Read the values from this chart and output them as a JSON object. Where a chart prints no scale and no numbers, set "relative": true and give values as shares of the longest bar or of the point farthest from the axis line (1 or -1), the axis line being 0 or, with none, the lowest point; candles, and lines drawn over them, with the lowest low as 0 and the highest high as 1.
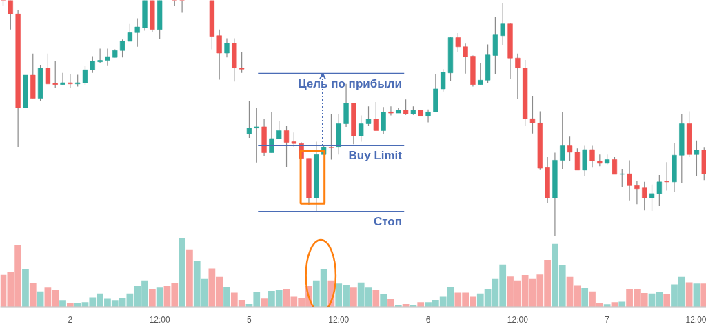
{
  "chart_data": [
    {
      "type": "candlestick",
      "relative": true,
      "tick_labels": false,
      "categories": [
        null,
        null,
        null,
        null,
        null,
        null,
        null,
        null,
        null,
        null,
        null,
        null,
        null,
        null,
        null,
        null,
        null,
        null,
        null,
        null,
        null,
        null,
        null,
        null,
        null,
        null,
        null,
        null,
        null,
        null,
        null,
        null,
        null,
        null,
        null,
        null,
        null,
        null,
        null,
        null,
        null,
        null,
        null,
        null,
        null,
        null,
        null,
        null,
        null,
        null,
        null,
        null,
        null,
        null,
        null,
        null,
        null,
        null,
        null,
        null,
        null,
        null,
        null,
        null,
        null,
        null,
        null,
        null,
        null,
        null,
        null,
        null,
        null,
        null,
        null,
        null,
        null,
        null,
        null,
        null,
        null,
        null,
        null,
        null,
        null,
        null,
        null,
        null,
        null,
        null,
        null,
        null,
        null,
        null,
        null
      ],
      "ohlc": [
        [
          1,
          1,
          0.976,
          1
        ],
        [
          1,
          1,
          0.876,
          0.942
        ],
        [
          0.942,
          0.958,
          0.376,
          0.545
        ],
        [
          0.545,
          0.682,
          0.545,
          0.682
        ],
        [
          0.682,
          0.774,
          0.584,
          0.584
        ],
        [
          0.584,
          0.726,
          0.574,
          0.713
        ],
        [
          0.713,
          0.774,
          0.645,
          0.645
        ],
        [
          0.647,
          0.742,
          0.629,
          0.642
        ],
        [
          0.642,
          0.692,
          0.639,
          0.65
        ],
        [
          0.65,
          0.687,
          0.629,
          0.645
        ],
        [
          0.645,
          0.684,
          0.634,
          0.65
        ],
        [
          0.65,
          0.721,
          0.639,
          0.705
        ],
        [
          0.705,
          0.763,
          0.692,
          0.742
        ],
        [
          0.739,
          0.795,
          0.732,
          0.745
        ],
        [
          0.745,
          0.795,
          0.721,
          0.761
        ],
        [
          0.758,
          0.792,
          0.758,
          0.787
        ],
        [
          0.787,
          0.834,
          0.758,
          0.826
        ],
        [
          0.826,
          0.9,
          0.826,
          0.863
        ],
        [
          0.863,
          0.924,
          0.803,
          0.887
        ],
        [
          0.884,
          1,
          0.871,
          1
        ],
        [
          1,
          1,
          0.866,
          0.876
        ],
        [
          0.876,
          1,
          0.837,
          1
        ],
        null,
        [
          1,
          1,
          0.976,
          1
        ],
        [
          1,
          1,
          0.947,
          1
        ],
        null,
        null,
        null,
        [
          1,
          1,
          0.792,
          0.847
        ],
        [
          0.85,
          0.876,
          0.663,
          0.776
        ],
        [
          0.776,
          0.839,
          0.758,
          0.818
        ],
        [
          0.818,
          0.839,
          0.655,
          0.713
        ],
        [
          0.713,
          0.779,
          0.692,
          0.708
        ],
        [
          0.432,
          0.571,
          0.416,
          0.458
        ],
        [
          0.458,
          0.545,
          0.311,
          0.463
        ],
        [
          0.463,
          0.497,
          0.337,
          0.353
        ],
        [
          0.353,
          0.524,
          0.353,
          0.413
        ],
        [
          0.413,
          0.487,
          0.413,
          0.447
        ],
        [
          0.447,
          0.466,
          0.292,
          0.397
        ],
        [
          0.4,
          0.439,
          0.376,
          0.392
        ],
        [
          0.392,
          0.397,
          0.329,
          0.329
        ],
        [
          0.329,
          0.329,
          0.129,
          0.161
        ],
        [
          0.161,
          0.4,
          0.105,
          0.345
        ],
        [
          0.345,
          0.387,
          0.345,
          0.376
        ],
        [
          0.376,
          0.518,
          0.324,
          0.374
        ],
        [
          0.376,
          0.516,
          0.345,
          0.476
        ],
        [
          0.476,
          0.645,
          0.463,
          0.563
        ],
        [
          0.563,
          0.563,
          0.389,
          0.424
        ],
        [
          0.424,
          0.511,
          0.4,
          0.476
        ],
        [
          0.476,
          0.55,
          0.466,
          0.495
        ],
        [
          0.495,
          0.568,
          0.447,
          0.447
        ],
        [
          0.447,
          0.547,
          0.432,
          0.524
        ],
        [
          0.526,
          0.55,
          0.511,
          0.521
        ],
        [
          0.521,
          0.545,
          0.521,
          0.534
        ],
        [
          0.534,
          0.579,
          0.513,
          0.518
        ],
        [
          0.518,
          0.55,
          0.513,
          0.534
        ],
        [
          0.534,
          0.534,
          0.508,
          0.508
        ],
        [
          0.508,
          0.537,
          0.482,
          0.526
        ],
        [
          0.526,
          0.687,
          0.526,
          0.624
        ],
        [
          0.624,
          0.708,
          0.613,
          0.695
        ],
        [
          0.692,
          0.845,
          0.658,
          0.842
        ],
        [
          0.842,
          0.861,
          0.782,
          0.803
        ],
        [
          0.803,
          0.816,
          0.689,
          0.761
        ],
        [
          0.763,
          0.766,
          0.634,
          0.642
        ],
        [
          0.642,
          0.734,
          0.642,
          0.661
        ],
        [
          0.661,
          0.813,
          0.65,
          0.768
        ],
        [
          0.766,
          0.929,
          0.687,
          0.853
        ],
        [
          0.85,
          0.989,
          0.808,
          0.9
        ],
        [
          0.9,
          0.905,
          0.668,
          0.755
        ],
        [
          0.755,
          0.774,
          0.582,
          0.713
        ],
        [
          0.713,
          0.747,
          0.466,
          0.497
        ],
        [
          0.497,
          0.592,
          0.434,
          0.479
        ],
        [
          0.479,
          0.529,
          0.282,
          0.287
        ],
        [
          0.289,
          0.334,
          0.139,
          0.161
        ],
        [
          0.161,
          0.353,
          0,
          0.321
        ],
        [
          0.321,
          0.524,
          0.284,
          0.382
        ],
        [
          0.382,
          0.421,
          0.318,
          0.355
        ],
        [
          0.355,
          0.371,
          0.279,
          0.279
        ],
        [
          0.279,
          0.382,
          0.253,
          0.366
        ],
        [
          0.366,
          0.382,
          0.289,
          0.318
        ],
        [
          0.318,
          0.345,
          0.295,
          0.308
        ],
        [
          0.308,
          0.345,
          0.303,
          0.324
        ],
        [
          0.324,
          0.334,
          0.261,
          0.261
        ],
        [
          0.261,
          0.284,
          0.208,
          0.263
        ],
        [
          0.263,
          0.321,
          0.15,
          0.213
        ],
        [
          0.213,
          0.232,
          0.134,
          0.2
        ],
        [
          0.203,
          0.229,
          0.108,
          0.161
        ],
        [
          0.161,
          0.218,
          0.105,
          0.179
        ],
        [
          0.179,
          0.258,
          0.126,
          0.229
        ],
        [
          0.232,
          0.313,
          0.192,
          0.229
        ],
        [
          0.229,
          0.395,
          0.187,
          0.342
        ],
        [
          0.342,
          0.518,
          0.224,
          0.476
        ],
        [
          0.476,
          0.529,
          0.334,
          0.345
        ],
        [
          0.345,
          0.405,
          0.255,
          0.363
        ],
        [
          0.363,
          0.374,
          0.237,
          0.263
        ]
      ],
      "colors": [
        "#ef5350",
        "#ef5350",
        "#ef5350",
        "#26a69a",
        "#ef5350",
        "#26a69a",
        "#ef5350",
        "#ef5350",
        "#26a69a",
        "#ef5350",
        "#26a69a",
        "#26a69a",
        "#26a69a",
        "#26a69a",
        "#26a69a",
        "#26a69a",
        "#26a69a",
        "#26a69a",
        "#26a69a",
        "#26a69a",
        "#ef5350",
        "#26a69a",
        null,
        "#ef5350",
        "#ef5350",
        null,
        null,
        null,
        "#ef5350",
        "#ef5350",
        "#26a69a",
        "#ef5350",
        "#ef5350",
        "#26a69a",
        "#26a69a",
        "#ef5350",
        "#26a69a",
        "#26a69a",
        "#ef5350",
        "#ef5350",
        "#ef5350",
        "#ef5350",
        "#26a69a",
        "#26a69a",
        "#ef5350",
        "#26a69a",
        "#26a69a",
        "#ef5350",
        "#26a69a",
        "#26a69a",
        "#ef5350",
        "#26a69a",
        "#ef5350",
        "#26a69a",
        "#ef5350",
        "#26a69a",
        "#ef5350",
        "#26a69a",
        "#26a69a",
        "#26a69a",
        "#26a69a",
        "#ef5350",
        "#ef5350",
        "#ef5350",
        "#26a69a",
        "#26a69a",
        "#26a69a",
        "#26a69a",
        "#ef5350",
        "#ef5350",
        "#ef5350",
        "#ef5350",
        "#ef5350",
        "#ef5350",
        "#26a69a",
        "#26a69a",
        "#ef5350",
        "#ef5350",
        "#26a69a",
        "#ef5350",
        "#ef5350",
        "#26a69a",
        "#ef5350",
        "#26a69a",
        "#ef5350",
        "#ef5350",
        "#ef5350",
        "#26a69a",
        "#26a69a",
        "#ef5350",
        "#26a69a",
        "#26a69a",
        "#ef5350",
        "#26a69a",
        "#ef5350"
      ],
      "ref_lines": [
        {
          "axis": "y",
          "value": 0.689,
          "label": "Цель по прибыли",
          "color": "#4a6cb6"
        },
        {
          "axis": "y",
          "value": 0.384,
          "label": "Buy Limit",
          "color": "#4a6cb6"
        },
        {
          "axis": "y",
          "value": 0.103,
          "label": "Стоп",
          "color": "#4a6cb6"
        }
      ]
    },
    {
      "type": "bar",
      "relative": true,
      "tick_labels": "x",
      "categories": [
        null,
        null,
        null,
        null,
        null,
        null,
        null,
        null,
        null,
        "2",
        null,
        null,
        null,
        null,
        null,
        null,
        null,
        null,
        null,
        null,
        null,
        "12:00",
        null,
        null,
        null,
        null,
        null,
        null,
        null,
        null,
        null,
        null,
        null,
        "5",
        null,
        null,
        null,
        null,
        null,
        null,
        null,
        null,
        null,
        null,
        null,
        "12:00",
        null,
        null,
        null,
        null,
        null,
        null,
        null,
        null,
        null,
        null,
        null,
        "6",
        null,
        null,
        null,
        null,
        null,
        null,
        null,
        null,
        null,
        null,
        null,
        "12:00",
        null,
        null,
        null,
        null,
        null,
        null,
        null,
        null,
        null,
        null,
        null,
        "7",
        null,
        null,
        null,
        null,
        null,
        null,
        null,
        null,
        null,
        null,
        null,
        "12:00",
        null
      ],
      "values": [
        0.462,
        0.511,
        0.895,
        0.547,
        0.345,
        0.219,
        0.276,
        0.237,
        0.084,
        0.054,
        0.054,
        0.063,
        0.132,
        0.189,
        0.111,
        0.084,
        0.123,
        0.189,
        0.297,
        0.381,
        0.249,
        0.276,
        0.297,
        0.345,
        1,
        0.826,
        0.673,
        0.402,
        0.556,
        0.432,
        0.285,
        0.201,
        0.087,
        0.036,
        0.21,
        0.114,
        0.228,
        0.237,
        0.249,
        0.141,
        0.123,
        0.297,
        0.381,
        0.547,
        0.381,
        0.336,
        0.315,
        0.276,
        0.351,
        0.276,
        0.237,
        0.18,
        0.105,
        0.024,
        0.036,
        0.024,
        0.063,
        0.063,
        0.093,
        0.141,
        0.285,
        0.201,
        0.201,
        0.141,
        0.189,
        0.258,
        0.402,
        0.613,
        0.438,
        0.381,
        0.459,
        0.402,
        0.468,
        0.682,
        0.916,
        0.601,
        0.432,
        0.303,
        0.267,
        0.219,
        0.054,
        0.033,
        0.063,
        0.072,
        0.249,
        0.258,
        0.198,
        0.189,
        0.207,
        0.18,
        0.324,
        0.432,
        0.354,
        0.336,
        0.336
      ],
      "colors": [
        "#f7a8a6",
        "#f7a8a6",
        "#f7a8a6",
        "#93d3cc",
        "#f7a8a6",
        "#93d3cc",
        "#f7a8a6",
        "#f7a8a6",
        "#93d3cc",
        "#f7a8a6",
        "#93d3cc",
        "#93d3cc",
        "#93d3cc",
        "#93d3cc",
        "#93d3cc",
        "#93d3cc",
        "#93d3cc",
        "#93d3cc",
        "#93d3cc",
        "#93d3cc",
        "#f7a8a6",
        "#93d3cc",
        "#f7a8a6",
        "#f7a8a6",
        "#93d3cc",
        "#f7a8a6",
        "#93d3cc",
        "#93d3cc",
        "#f7a8a6",
        "#f7a8a6",
        "#93d3cc",
        "#f7a8a6",
        "#f7a8a6",
        "#93d3cc",
        "#93d3cc",
        "#f7a8a6",
        "#93d3cc",
        "#93d3cc",
        "#f7a8a6",
        "#f7a8a6",
        "#f7a8a6",
        "#f7a8a6",
        "#93d3cc",
        "#93d3cc",
        "#f7a8a6",
        "#93d3cc",
        "#93d3cc",
        "#f7a8a6",
        "#93d3cc",
        "#93d3cc",
        "#f7a8a6",
        "#93d3cc",
        "#f7a8a6",
        "#93d3cc",
        "#f7a8a6",
        "#93d3cc",
        "#f7a8a6",
        "#93d3cc",
        "#93d3cc",
        "#93d3cc",
        "#93d3cc",
        "#f7a8a6",
        "#f7a8a6",
        "#f7a8a6",
        "#93d3cc",
        "#93d3cc",
        "#93d3cc",
        "#93d3cc",
        "#f7a8a6",
        "#f7a8a6",
        "#f7a8a6",
        "#f7a8a6",
        "#f7a8a6",
        "#f7a8a6",
        "#93d3cc",
        "#93d3cc",
        "#f7a8a6",
        "#f7a8a6",
        "#93d3cc",
        "#f7a8a6",
        "#f7a8a6",
        "#93d3cc",
        "#f7a8a6",
        "#93d3cc",
        "#f7a8a6",
        "#f7a8a6",
        "#f7a8a6",
        "#93d3cc",
        "#93d3cc",
        "#f7a8a6",
        "#93d3cc",
        "#93d3cc",
        "#f7a8a6",
        "#93d3cc",
        "#f7a8a6"
      ]
    }
  ]
}
